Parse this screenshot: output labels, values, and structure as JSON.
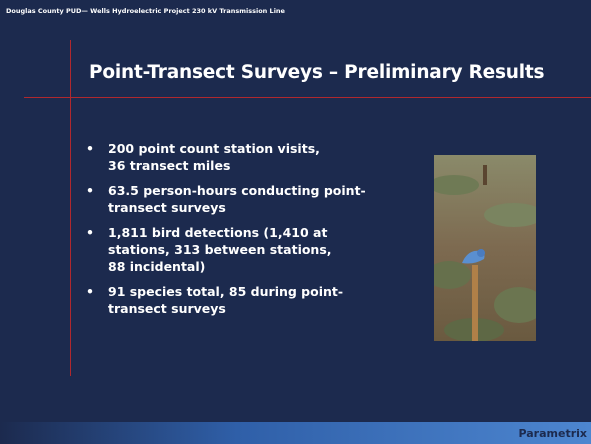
{
  "header": {
    "text": "Douglas County PUD— Wells Hydroelectric Project 230 kV Transmission Line"
  },
  "title": "Point-Transect Surveys – Preliminary Results",
  "bullets": [
    [
      "200 point count station visits,",
      "36 transect miles"
    ],
    [
      "63.5 person-hours conducting point-",
      "transect surveys"
    ],
    [
      "1,811 bird detections (1,410 at",
      "stations, 313 between stations,",
      "88 incidental)"
    ],
    [
      "91 species total, 85 during point-",
      "transect surveys"
    ]
  ],
  "footer": {
    "logo": "Parametrix"
  }
}
